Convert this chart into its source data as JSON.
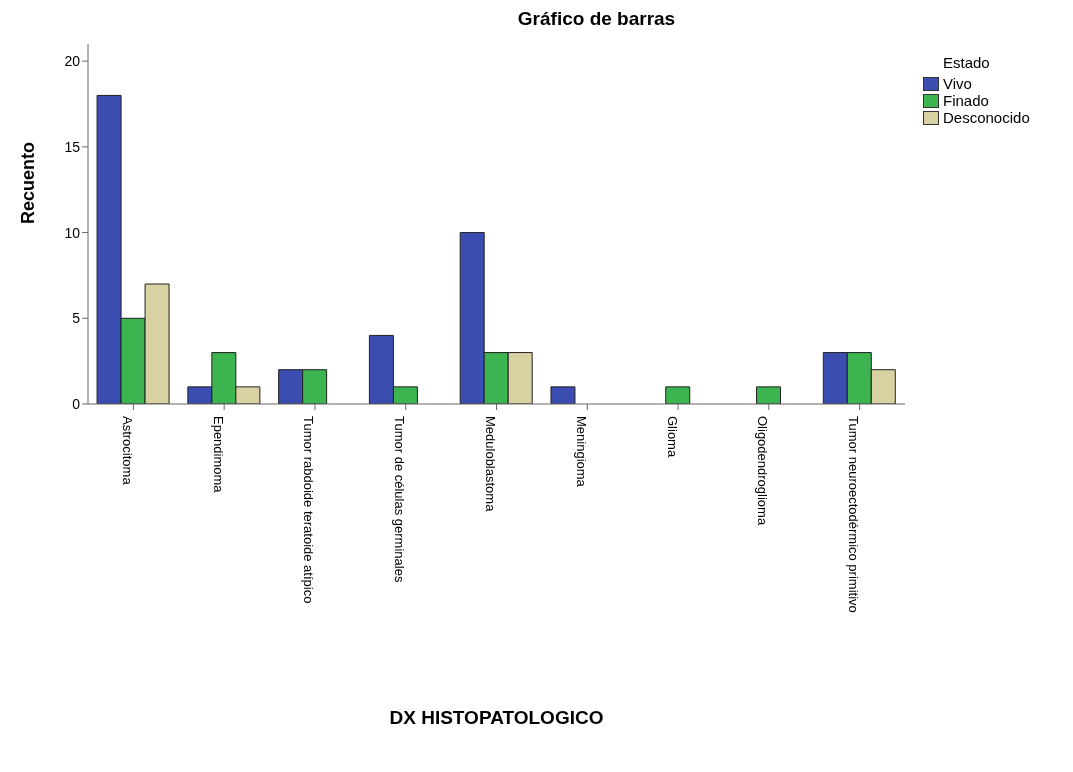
{
  "chart_data": {
    "type": "bar",
    "title": "Gráfico de barras",
    "xlabel": "DX HISTOPATOLOGICO",
    "ylabel": "Recuento",
    "legend_title": "Estado",
    "categories": [
      "Astrocitoma",
      "Ependimoma",
      "Tumor rabdoide teratoide atípico",
      "Tumor de células germinales",
      "Meduloblastoma",
      "Meningioma",
      "Glioma",
      "Oligodendroglioma",
      "Tumor neuroectodérmico primitivo"
    ],
    "series": [
      {
        "name": "Vivo",
        "color": "#3b4db0",
        "values": [
          18,
          1,
          2,
          4,
          10,
          1,
          null,
          null,
          3
        ]
      },
      {
        "name": "Finado",
        "color": "#3cb44f",
        "values": [
          5,
          3,
          2,
          1,
          3,
          null,
          1,
          1,
          3
        ]
      },
      {
        "name": "Desconocido",
        "color": "#d8d2a2",
        "values": [
          7,
          1,
          null,
          null,
          3,
          null,
          null,
          null,
          2
        ]
      }
    ],
    "ylim": [
      0,
      21
    ],
    "yticks": [
      0,
      5,
      10,
      15,
      20
    ],
    "grid": false,
    "legend": "top right"
  }
}
